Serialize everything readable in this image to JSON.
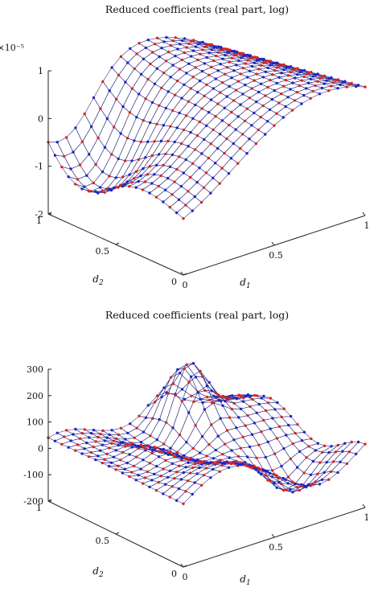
{
  "chart_data": [
    {
      "type": "surface",
      "title": "Reduced coefficients (real part, log)",
      "xlabel": "d_1",
      "ylabel": "d_2",
      "zlabel": "",
      "x": [
        0,
        0.05,
        0.1,
        0.15,
        0.2,
        0.25,
        0.3,
        0.35,
        0.4,
        0.45,
        0.5,
        0.55,
        0.6,
        0.65,
        0.7,
        0.75,
        0.8,
        0.85,
        0.9,
        0.95,
        1
      ],
      "y": [
        0,
        0.05,
        0.1,
        0.15,
        0.2,
        0.25,
        0.3,
        0.35,
        0.4,
        0.45,
        0.5,
        0.55,
        0.6,
        0.65,
        0.7,
        0.75,
        0.8,
        0.85,
        0.9,
        0.95,
        1
      ],
      "xlim": [
        0,
        1
      ],
      "ylim": [
        0,
        1
      ],
      "zlim": [
        -2e-05,
        1e-05
      ],
      "z_multiplier": "×10⁻⁵",
      "xticks": [
        "0",
        "0.5",
        "1"
      ],
      "yticks": [
        "0",
        "0.5",
        "1"
      ],
      "zticks": [
        "-2",
        "-1",
        "0",
        "1"
      ],
      "surface_shape": "smooth saddle: rises to about 1e-5 near d1=0.6, d2=1 and dips to about -2e-5 near d1=0.1, d2=0.8",
      "colormap": "parula",
      "node_colors": [
        "#2222cc",
        "#dd2222"
      ]
    },
    {
      "type": "surface",
      "title": "Reduced coefficients (real part, log)",
      "xlabel": "d_1",
      "ylabel": "d_2",
      "zlabel": "",
      "x": [
        0,
        0.05,
        0.1,
        0.15,
        0.2,
        0.25,
        0.3,
        0.35,
        0.4,
        0.45,
        0.5,
        0.55,
        0.6,
        0.65,
        0.7,
        0.75,
        0.8,
        0.85,
        0.9,
        0.95,
        1
      ],
      "y": [
        0,
        0.05,
        0.1,
        0.15,
        0.2,
        0.25,
        0.3,
        0.35,
        0.4,
        0.45,
        0.5,
        0.55,
        0.6,
        0.65,
        0.7,
        0.75,
        0.8,
        0.85,
        0.9,
        0.95,
        1
      ],
      "xlim": [
        0,
        1
      ],
      "ylim": [
        0,
        1
      ],
      "zlim": [
        -200,
        300
      ],
      "xticks": [
        "0",
        "0.5",
        "1"
      ],
      "yticks": [
        "0",
        "0.5",
        "1"
      ],
      "zticks": [
        "-200",
        "-100",
        "0",
        "100",
        "200",
        "300"
      ],
      "surface_shape": "oscillating surface with peaks up to about 280 near d1=0.6, d2=0.8 and troughs down to about -180",
      "colormap": "parula",
      "node_colors": [
        "#2222cc",
        "#dd2222"
      ]
    }
  ]
}
